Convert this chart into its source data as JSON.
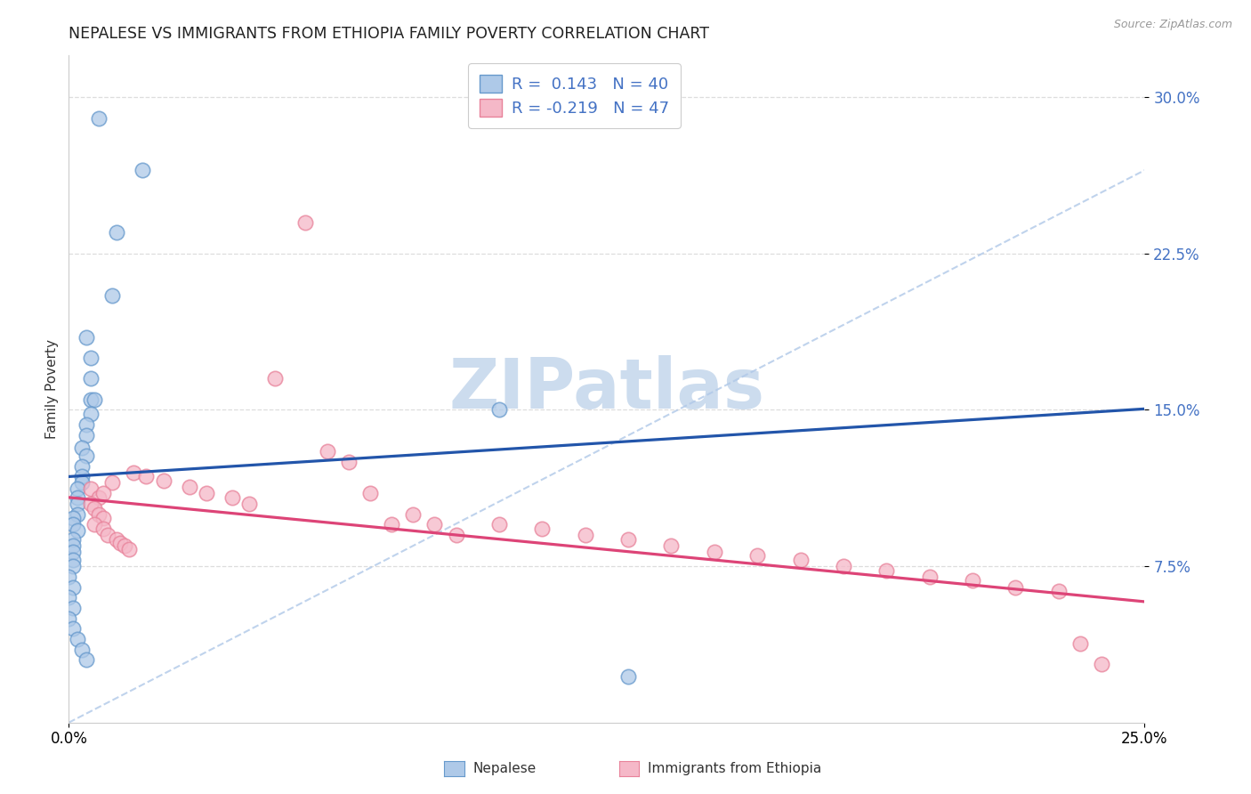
{
  "title": "NEPALESE VS IMMIGRANTS FROM ETHIOPIA FAMILY POVERTY CORRELATION CHART",
  "source": "Source: ZipAtlas.com",
  "ylabel": "Family Poverty",
  "xlim": [
    0.0,
    0.25
  ],
  "ylim": [
    0.0,
    0.32
  ],
  "yticks": [
    0.075,
    0.15,
    0.225,
    0.3
  ],
  "ytick_labels": [
    "7.5%",
    "15.0%",
    "22.5%",
    "30.0%"
  ],
  "xtick_positions": [
    0.0,
    0.25
  ],
  "xtick_labels": [
    "0.0%",
    "25.0%"
  ],
  "blue_fill": "#aec9e8",
  "blue_edge": "#6699cc",
  "pink_fill": "#f5b8c8",
  "pink_edge": "#e8829a",
  "blue_line": "#2255aa",
  "pink_line": "#dd4477",
  "diag_line": "#b0c8e8",
  "grid_color": "#dddddd",
  "tick_color": "#4472c4",
  "watermark_color": "#ccdcee",
  "R_blue": 0.143,
  "N_blue": 40,
  "R_pink": -0.219,
  "N_pink": 47,
  "blue_intercept": 0.118,
  "blue_slope": 0.13,
  "pink_intercept": 0.108,
  "pink_slope": -0.2,
  "nepalese_x": [
    0.007,
    0.017,
    0.011,
    0.01,
    0.004,
    0.005,
    0.005,
    0.005,
    0.006,
    0.005,
    0.004,
    0.004,
    0.003,
    0.004,
    0.003,
    0.003,
    0.003,
    0.002,
    0.002,
    0.002,
    0.002,
    0.001,
    0.001,
    0.002,
    0.001,
    0.001,
    0.001,
    0.001,
    0.001,
    0.0,
    0.001,
    0.0,
    0.001,
    0.0,
    0.001,
    0.002,
    0.003,
    0.004,
    0.1,
    0.13
  ],
  "nepalese_y": [
    0.29,
    0.265,
    0.235,
    0.205,
    0.185,
    0.175,
    0.165,
    0.155,
    0.155,
    0.148,
    0.143,
    0.138,
    0.132,
    0.128,
    0.123,
    0.118,
    0.115,
    0.112,
    0.108,
    0.105,
    0.1,
    0.098,
    0.095,
    0.092,
    0.088,
    0.085,
    0.082,
    0.078,
    0.075,
    0.07,
    0.065,
    0.06,
    0.055,
    0.05,
    0.045,
    0.04,
    0.035,
    0.03,
    0.15,
    0.022
  ],
  "ethiopia_x": [
    0.005,
    0.007,
    0.005,
    0.006,
    0.007,
    0.008,
    0.006,
    0.008,
    0.009,
    0.01,
    0.011,
    0.012,
    0.013,
    0.014,
    0.008,
    0.015,
    0.018,
    0.022,
    0.028,
    0.032,
    0.038,
    0.042,
    0.048,
    0.055,
    0.06,
    0.065,
    0.07,
    0.075,
    0.08,
    0.085,
    0.09,
    0.1,
    0.11,
    0.12,
    0.13,
    0.14,
    0.15,
    0.16,
    0.17,
    0.18,
    0.19,
    0.2,
    0.21,
    0.22,
    0.23,
    0.235,
    0.24
  ],
  "ethiopia_y": [
    0.112,
    0.108,
    0.105,
    0.103,
    0.1,
    0.098,
    0.095,
    0.093,
    0.09,
    0.115,
    0.088,
    0.086,
    0.085,
    0.083,
    0.11,
    0.12,
    0.118,
    0.116,
    0.113,
    0.11,
    0.108,
    0.105,
    0.165,
    0.24,
    0.13,
    0.125,
    0.11,
    0.095,
    0.1,
    0.095,
    0.09,
    0.095,
    0.093,
    0.09,
    0.088,
    0.085,
    0.082,
    0.08,
    0.078,
    0.075,
    0.073,
    0.07,
    0.068,
    0.065,
    0.063,
    0.038,
    0.028
  ]
}
